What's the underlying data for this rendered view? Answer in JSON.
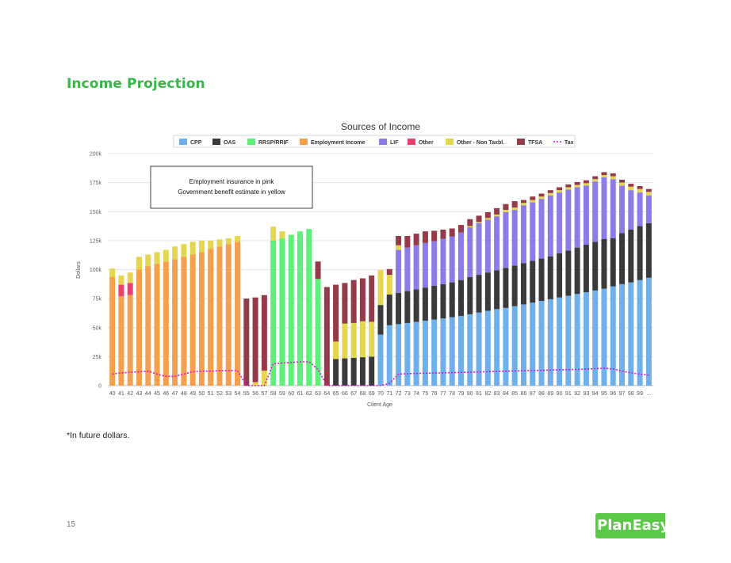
{
  "page": {
    "title": "Income Projection",
    "footnote": "*In future dollars.",
    "page_number": "15",
    "logo_text": "PlanEasy"
  },
  "annotation": {
    "line1": "Employment insurance in pink",
    "line2": "Government benefit estimate in yellow"
  },
  "chart_data": {
    "type": "bar",
    "stacked": true,
    "title": "Sources of Income",
    "xlabel": "Client Age",
    "ylabel": "Dollars",
    "ylim": [
      0,
      200000
    ],
    "yticks": [
      0,
      25000,
      50000,
      75000,
      100000,
      125000,
      150000,
      175000,
      200000
    ],
    "ytick_labels": [
      "0",
      "25k",
      "50k",
      "75k",
      "100k",
      "125k",
      "150k",
      "175k",
      "200k"
    ],
    "grid": true,
    "legend_position": "top",
    "categories": [
      "40",
      "41",
      "42",
      "43",
      "44",
      "45",
      "46",
      "47",
      "48",
      "49",
      "50",
      "51",
      "52",
      "53",
      "54",
      "55",
      "56",
      "57",
      "58",
      "59",
      "60",
      "61",
      "62",
      "63",
      "64",
      "65",
      "66",
      "67",
      "68",
      "69",
      "70",
      "71",
      "72",
      "73",
      "74",
      "75",
      "76",
      "77",
      "78",
      "79",
      "80",
      "81",
      "82",
      "83",
      "84",
      "85",
      "86",
      "87",
      "88",
      "89",
      "90",
      "91",
      "92",
      "93",
      "94",
      "95",
      "96",
      "97",
      "98",
      "99",
      "..."
    ],
    "series": [
      {
        "name": "CPP",
        "color": "#6fb0ea",
        "values": [
          0,
          0,
          0,
          0,
          0,
          0,
          0,
          0,
          0,
          0,
          0,
          0,
          0,
          0,
          0,
          0,
          0,
          0,
          0,
          0,
          0,
          0,
          0,
          0,
          0,
          0,
          0,
          0,
          0,
          0,
          44000,
          52000,
          53000,
          54000,
          55000,
          56000,
          57000,
          58000,
          59000,
          60000,
          61500,
          63000,
          64500,
          66000,
          67000,
          68500,
          70000,
          71500,
          73000,
          74500,
          76000,
          77500,
          79000,
          80500,
          82000,
          83500,
          85500,
          87500,
          89000,
          91000,
          93000
        ]
      },
      {
        "name": "OAS",
        "color": "#3a3a3a",
        "values": [
          0,
          0,
          0,
          0,
          0,
          0,
          0,
          0,
          0,
          0,
          0,
          0,
          0,
          0,
          0,
          0,
          0,
          0,
          0,
          0,
          0,
          0,
          0,
          0,
          0,
          23000,
          23500,
          24000,
          24500,
          25000,
          25500,
          26500,
          27000,
          27500,
          28000,
          28500,
          29000,
          29500,
          30000,
          31000,
          32000,
          32500,
          33000,
          33500,
          34500,
          35000,
          35500,
          36000,
          36500,
          37000,
          38000,
          39000,
          40000,
          41000,
          42000,
          43000,
          41500,
          44000,
          45500,
          46500,
          47000
        ]
      },
      {
        "name": "RRSP/RRIF",
        "color": "#5ef07a",
        "values": [
          0,
          0,
          0,
          0,
          0,
          0,
          0,
          0,
          0,
          0,
          0,
          0,
          0,
          0,
          0,
          0,
          0,
          0,
          125000,
          127000,
          130000,
          133000,
          135000,
          92000,
          0,
          0,
          0,
          0,
          0,
          0,
          0,
          0,
          0,
          0,
          0,
          0,
          0,
          0,
          0,
          0,
          0,
          0,
          0,
          0,
          0,
          0,
          0,
          0,
          0,
          0,
          0,
          0,
          0,
          0,
          0,
          0,
          0,
          0,
          0,
          0,
          0
        ]
      },
      {
        "name": "Employment Income",
        "color": "#f4a04e",
        "values": [
          94000,
          77000,
          78000,
          100000,
          103000,
          105000,
          107000,
          109000,
          111000,
          113000,
          115000,
          118000,
          120000,
          122000,
          124000,
          0,
          0,
          0,
          0,
          0,
          0,
          0,
          0,
          0,
          0,
          0,
          0,
          0,
          0,
          0,
          0,
          0,
          0,
          0,
          0,
          0,
          0,
          0,
          0,
          0,
          0,
          0,
          0,
          0,
          0,
          0,
          0,
          0,
          0,
          0,
          0,
          0,
          0,
          0,
          0,
          0,
          0,
          0,
          0,
          0,
          0
        ]
      },
      {
        "name": "LIF",
        "color": "#8f7be8",
        "values": [
          0,
          0,
          0,
          0,
          0,
          0,
          0,
          0,
          0,
          0,
          0,
          0,
          0,
          0,
          0,
          0,
          0,
          0,
          0,
          0,
          0,
          0,
          0,
          0,
          0,
          0,
          0,
          0,
          0,
          0,
          0,
          0,
          37000,
          37500,
          38000,
          38500,
          38500,
          39000,
          39500,
          41000,
          43000,
          44500,
          45500,
          46500,
          48000,
          48000,
          50000,
          50500,
          51500,
          52500,
          52500,
          52500,
          52000,
          51000,
          52000,
          53000,
          51000,
          41000,
          34000,
          29000,
          24000
        ]
      },
      {
        "name": "Other",
        "color": "#ec3f6e",
        "values": [
          0,
          10000,
          10500,
          0,
          0,
          0,
          0,
          0,
          0,
          0,
          0,
          0,
          0,
          0,
          0,
          0,
          0,
          0,
          0,
          0,
          0,
          0,
          0,
          0,
          0,
          0,
          0,
          0,
          0,
          0,
          0,
          0,
          0,
          0,
          0,
          0,
          0,
          0,
          0,
          0,
          0,
          0,
          0,
          0,
          0,
          0,
          0,
          0,
          0,
          0,
          0,
          0,
          0,
          0,
          0,
          0,
          0,
          0,
          0,
          0,
          0
        ]
      },
      {
        "name": "Other - Non Taxbl.",
        "color": "#e4d64e",
        "values": [
          7000,
          8000,
          9000,
          11000,
          10000,
          10000,
          10000,
          11000,
          11000,
          11000,
          10000,
          7000,
          6000,
          5000,
          5000,
          0,
          3000,
          13000,
          12000,
          6000,
          0,
          0,
          0,
          0,
          0,
          15000,
          30000,
          30000,
          31000,
          30000,
          30000,
          17000,
          4000,
          0,
          0,
          0,
          0,
          0,
          0,
          0,
          1000,
          1000,
          1500,
          1500,
          2000,
          2000,
          2000,
          2000,
          2000,
          2000,
          2000,
          2000,
          2000,
          2000,
          2000,
          2000,
          2500,
          2500,
          3000,
          3000,
          3000
        ]
      },
      {
        "name": "TFSA",
        "color": "#943a48",
        "values": [
          0,
          0,
          0,
          0,
          0,
          0,
          0,
          0,
          0,
          0,
          0,
          0,
          0,
          0,
          0,
          75000,
          73000,
          65000,
          0,
          0,
          0,
          0,
          0,
          15000,
          85000,
          49000,
          35000,
          37000,
          37000,
          40000,
          0,
          5000,
          8000,
          10000,
          10000,
          10000,
          9000,
          8000,
          7000,
          6500,
          6000,
          5500,
          5000,
          5500,
          5000,
          5500,
          2500,
          3000,
          2500,
          2500,
          2500,
          2500,
          2500,
          2500,
          2500,
          2500,
          2500,
          2500,
          2500,
          2500,
          2500
        ]
      },
      {
        "name": "Tax",
        "color": "#e60fd6",
        "line": true,
        "values": [
          10000,
          11000,
          11500,
          12000,
          12500,
          10000,
          8000,
          8000,
          10000,
          12000,
          12500,
          12500,
          12800,
          13000,
          13000,
          0,
          0,
          0,
          19000,
          19500,
          20000,
          20500,
          20500,
          14000,
          0,
          0,
          0,
          0,
          0,
          0,
          0,
          2000,
          10000,
          10300,
          10500,
          10700,
          10900,
          11000,
          11200,
          11400,
          11600,
          11800,
          12000,
          12200,
          12400,
          12600,
          12800,
          13000,
          13200,
          13400,
          13600,
          13800,
          14000,
          14300,
          14600,
          15000,
          14500,
          12500,
          11000,
          10000,
          9000
        ]
      }
    ]
  }
}
